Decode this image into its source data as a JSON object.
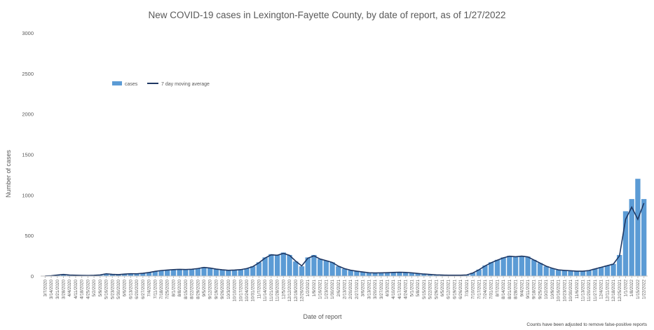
{
  "chart_data": {
    "type": "bar",
    "title": "New COVID-19 cases in Lexington-Fayette County, by date of report, as of 1/27/2022",
    "xlabel": "Date of report",
    "ylabel": "Number of cases",
    "ylim": [
      0,
      3000
    ],
    "yticks": [
      0,
      500,
      1000,
      1500,
      2000,
      2500,
      3000
    ],
    "grid": false,
    "legend_position": "top-left",
    "footnote": "Counts have been adjusted to remove false-positive reports",
    "categories": [
      "3/7/2020",
      "3/14/2020",
      "3/21/2020",
      "3/28/2020",
      "4/4/2020",
      "4/11/2020",
      "4/18/2020",
      "4/25/2020",
      "5/2/2020",
      "5/9/2020",
      "5/16/2020",
      "5/23/2020",
      "5/30/2020",
      "6/6/2020",
      "6/13/2020",
      "6/20/2020",
      "6/27/2020",
      "7/4/2020",
      "7/11/2020",
      "7/18/2020",
      "7/25/2020",
      "8/1/2020",
      "8/8/2020",
      "8/15/2020",
      "8/22/2020",
      "8/29/2020",
      "9/5/2020",
      "9/12/2020",
      "9/19/2020",
      "9/26/2020",
      "10/3/2020",
      "10/10/2020",
      "10/17/2020",
      "10/24/2020",
      "10/31/2020",
      "11/7/2020",
      "11/14/2020",
      "11/21/2020",
      "11/28/2020",
      "12/5/2020",
      "12/12/2020",
      "12/19/2020",
      "12/26/2020",
      "1/2/2021",
      "1/9/2021",
      "1/16/2021",
      "1/23/2021",
      "1/30/2021",
      "2/6/2021",
      "2/13/2021",
      "2/20/2021",
      "2/27/2021",
      "3/6/2021",
      "3/13/2021",
      "3/20/2021",
      "3/27/2021",
      "4/3/2021",
      "4/10/2021",
      "4/17/2021",
      "4/24/2021",
      "5/1/2021",
      "5/8/2021",
      "5/15/2021",
      "5/22/2021",
      "5/29/2021",
      "6/5/2021",
      "6/12/2021",
      "6/19/2021",
      "6/26/2021",
      "7/3/2021",
      "7/10/2021",
      "7/17/2021",
      "7/24/2021",
      "7/31/2021",
      "8/7/2021",
      "8/14/2021",
      "8/21/2021",
      "8/28/2021",
      "9/4/2021",
      "9/11/2021",
      "9/18/2021",
      "9/25/2021",
      "10/2/2021",
      "10/9/2021",
      "10/16/2021",
      "10/23/2021",
      "10/30/2021",
      "11/6/2021",
      "11/13/2021",
      "11/20/2021",
      "11/27/2021",
      "12/4/2021",
      "12/11/2021",
      "12/18/2021",
      "12/25/2021",
      "1/1/2022",
      "1/8/2022",
      "1/15/2022",
      "1/22/2022"
    ],
    "series": [
      {
        "name": "cases",
        "type": "bar",
        "color": "#5b9bd5",
        "values": [
          1,
          5,
          15,
          22,
          12,
          10,
          8,
          7,
          10,
          15,
          30,
          20,
          18,
          25,
          30,
          28,
          35,
          45,
          60,
          70,
          75,
          80,
          85,
          80,
          85,
          95,
          110,
          100,
          85,
          75,
          70,
          75,
          80,
          95,
          120,
          170,
          230,
          270,
          260,
          290,
          260,
          180,
          120,
          230,
          260,
          210,
          190,
          170,
          120,
          90,
          70,
          60,
          50,
          40,
          38,
          40,
          42,
          45,
          48,
          45,
          40,
          32,
          25,
          20,
          15,
          12,
          10,
          10,
          10,
          15,
          40,
          80,
          130,
          170,
          200,
          230,
          250,
          240,
          250,
          240,
          200,
          160,
          120,
          95,
          75,
          70,
          65,
          60,
          60,
          70,
          90,
          110,
          130,
          150,
          260,
          800,
          950,
          1200,
          950
        ]
      },
      {
        "name": "7 day moving average",
        "type": "line",
        "color": "#1f3864",
        "values": [
          1,
          4,
          13,
          20,
          13,
          10,
          8,
          7,
          9,
          14,
          28,
          21,
          18,
          24,
          29,
          28,
          34,
          44,
          58,
          68,
          74,
          79,
          83,
          81,
          84,
          93,
          106,
          99,
          86,
          77,
          71,
          74,
          79,
          93,
          117,
          164,
          222,
          262,
          257,
          280,
          255,
          185,
          125,
          220,
          250,
          210,
          190,
          168,
          122,
          92,
          72,
          60,
          50,
          41,
          38,
          40,
          42,
          45,
          47,
          45,
          40,
          32,
          25,
          20,
          15,
          12,
          10,
          10,
          10,
          14,
          38,
          77,
          125,
          165,
          196,
          225,
          245,
          238,
          246,
          236,
          198,
          160,
          122,
          96,
          76,
          70,
          65,
          60,
          60,
          68,
          88,
          108,
          128,
          148,
          250,
          700,
          850,
          700,
          900
        ]
      }
    ]
  }
}
